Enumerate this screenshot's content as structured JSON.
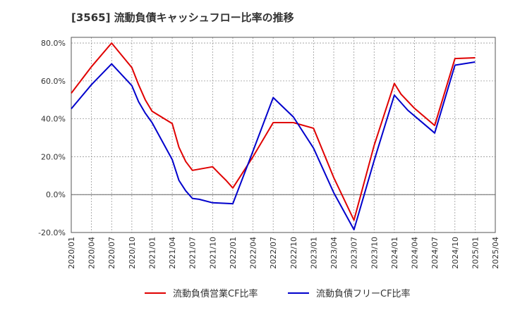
{
  "chart_data": {
    "type": "line",
    "title": "[3565]  流動負債キャッシュフロー比率の推移",
    "xlabel": "",
    "ylabel": "",
    "ylim": [
      -20,
      83
    ],
    "y_ticks": [
      -20,
      0,
      20,
      40,
      60,
      80
    ],
    "y_tick_labels": [
      "-20.0%",
      "0.0%",
      "20.0%",
      "40.0%",
      "60.0%",
      "80.0%"
    ],
    "x_ticks": [
      "2020/01",
      "2020/04",
      "2020/07",
      "2020/10",
      "2021/01",
      "2021/04",
      "2021/07",
      "2021/10",
      "2022/01",
      "2022/04",
      "2022/07",
      "2022/10",
      "2023/01",
      "2023/04",
      "2023/07",
      "2023/10",
      "2024/01",
      "2024/04",
      "2024/07",
      "2024/10",
      "2025/01",
      "2025/04"
    ],
    "grid": true,
    "legend_position": "bottom",
    "series": [
      {
        "name": "流動負債営業CF比率",
        "color": "#e00000",
        "points": [
          [
            "2020/01",
            53.5
          ],
          [
            "2020/04",
            67.5
          ],
          [
            "2020/07",
            80.0
          ],
          [
            "2020/10",
            67.0
          ],
          [
            "2020/11",
            58.0
          ],
          [
            "2020/12",
            50.0
          ],
          [
            "2021/01",
            44.0
          ],
          [
            "2021/04",
            37.5
          ],
          [
            "2021/05",
            25.0
          ],
          [
            "2021/06",
            17.5
          ],
          [
            "2021/07",
            12.8
          ],
          [
            "2021/10",
            14.7
          ],
          [
            "2021/11",
            11.0
          ],
          [
            "2021/12",
            7.5
          ],
          [
            "2022/01",
            3.5
          ],
          [
            "2022/04",
            20.0
          ],
          [
            "2022/07",
            38.0
          ],
          [
            "2022/10",
            38.0
          ],
          [
            "2023/01",
            35.0
          ],
          [
            "2023/04",
            9.0
          ],
          [
            "2023/07",
            -13.5
          ],
          [
            "2023/10",
            26.0
          ],
          [
            "2024/01",
            58.7
          ],
          [
            "2024/02",
            53.0
          ],
          [
            "2024/04",
            45.5
          ],
          [
            "2024/07",
            36.5
          ],
          [
            "2024/10",
            71.8
          ],
          [
            "2025/01",
            72.2
          ]
        ]
      },
      {
        "name": "流動負債フリーCF比率",
        "color": "#0000cc",
        "points": [
          [
            "2020/01",
            45.3
          ],
          [
            "2020/04",
            58.0
          ],
          [
            "2020/07",
            69.0
          ],
          [
            "2020/10",
            57.5
          ],
          [
            "2020/11",
            49.0
          ],
          [
            "2020/12",
            43.0
          ],
          [
            "2021/01",
            38.0
          ],
          [
            "2021/04",
            18.5
          ],
          [
            "2021/05",
            7.5
          ],
          [
            "2021/06",
            2.0
          ],
          [
            "2021/07",
            -2.0
          ],
          [
            "2021/08",
            -2.5
          ],
          [
            "2021/10",
            -4.3
          ],
          [
            "2022/01",
            -4.8
          ],
          [
            "2022/04",
            23.0
          ],
          [
            "2022/07",
            51.2
          ],
          [
            "2022/10",
            41.0
          ],
          [
            "2023/01",
            24.5
          ],
          [
            "2023/04",
            1.0
          ],
          [
            "2023/07",
            -18.5
          ],
          [
            "2023/10",
            18.0
          ],
          [
            "2024/01",
            52.5
          ],
          [
            "2024/03",
            44.5
          ],
          [
            "2024/05",
            38.5
          ],
          [
            "2024/07",
            32.5
          ],
          [
            "2024/10",
            68.3
          ],
          [
            "2025/01",
            70.0
          ]
        ]
      }
    ]
  }
}
